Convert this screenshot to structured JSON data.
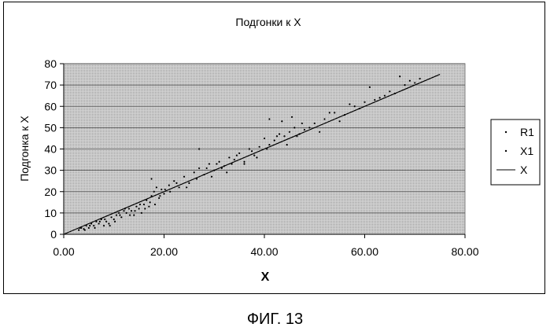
{
  "chart_data": {
    "type": "scatter",
    "title": "Подгонки к X",
    "xlabel": "X",
    "ylabel": "Подгонка к X",
    "xlim": [
      0,
      80
    ],
    "ylim": [
      0,
      80
    ],
    "x_ticks": [
      "0.00",
      "20.00",
      "40.00",
      "60.00",
      "80.00"
    ],
    "y_ticks": [
      "0",
      "10",
      "20",
      "30",
      "40",
      "50",
      "60",
      "70",
      "80"
    ],
    "grid": true,
    "legend_position": "right",
    "legend": [
      "R1",
      "X1",
      "X"
    ],
    "series": [
      {
        "name": "R1",
        "marker": "dot",
        "points": [
          [
            3,
            2
          ],
          [
            3.5,
            3
          ],
          [
            4,
            2.5
          ],
          [
            4.5,
            4
          ],
          [
            5,
            3
          ],
          [
            5.5,
            5
          ],
          [
            6,
            4
          ],
          [
            6.5,
            6
          ],
          [
            7,
            5
          ],
          [
            7.5,
            7
          ],
          [
            8,
            4
          ],
          [
            8.5,
            6
          ],
          [
            9,
            5
          ],
          [
            9.5,
            8
          ],
          [
            10,
            7
          ],
          [
            10.5,
            9
          ],
          [
            11,
            10
          ],
          [
            11.5,
            8
          ],
          [
            12,
            11
          ],
          [
            12.5,
            10
          ],
          [
            13,
            12
          ],
          [
            13.5,
            11
          ],
          [
            14,
            9
          ],
          [
            14.5,
            13
          ],
          [
            15,
            12
          ],
          [
            15.5,
            10
          ],
          [
            16,
            14
          ],
          [
            16.5,
            16
          ],
          [
            17,
            13
          ],
          [
            17.5,
            18
          ],
          [
            18,
            20
          ],
          [
            18.5,
            22
          ],
          [
            19,
            17
          ],
          [
            19.5,
            21
          ],
          [
            20,
            19
          ],
          [
            21,
            23
          ],
          [
            22,
            25
          ],
          [
            23,
            22
          ],
          [
            24,
            27
          ],
          [
            25,
            24
          ],
          [
            26,
            29
          ],
          [
            27,
            31
          ],
          [
            28,
            28
          ],
          [
            29,
            33
          ],
          [
            30,
            30
          ],
          [
            31,
            34
          ],
          [
            32,
            32
          ],
          [
            33,
            36
          ],
          [
            34,
            35
          ],
          [
            35,
            38
          ],
          [
            36,
            34
          ],
          [
            37,
            40
          ],
          [
            38,
            37
          ],
          [
            39,
            41
          ],
          [
            40,
            45
          ],
          [
            41,
            42
          ],
          [
            42,
            44
          ],
          [
            43,
            47
          ],
          [
            44,
            46
          ],
          [
            45,
            48
          ],
          [
            46,
            50
          ],
          [
            47,
            47
          ],
          [
            48,
            49
          ],
          [
            50,
            52
          ],
          [
            52,
            54
          ],
          [
            54,
            57
          ],
          [
            56,
            56
          ],
          [
            58,
            60
          ],
          [
            60,
            62
          ],
          [
            62,
            63
          ],
          [
            64,
            65
          ],
          [
            66,
            66
          ],
          [
            68,
            70
          ],
          [
            70,
            71
          ]
        ]
      },
      {
        "name": "X1",
        "marker": "dot",
        "points": [
          [
            3.2,
            3
          ],
          [
            4.2,
            2
          ],
          [
            5.2,
            4
          ],
          [
            6.2,
            3
          ],
          [
            7.2,
            6
          ],
          [
            8.2,
            7
          ],
          [
            9.2,
            4
          ],
          [
            10.2,
            6
          ],
          [
            11.2,
            9
          ],
          [
            12.2,
            12
          ],
          [
            13.2,
            9
          ],
          [
            14.2,
            11
          ],
          [
            15.2,
            14
          ],
          [
            16.2,
            12
          ],
          [
            17.2,
            15
          ],
          [
            17.5,
            26
          ],
          [
            18.2,
            14
          ],
          [
            19.2,
            18
          ],
          [
            20.2,
            21
          ],
          [
            21.2,
            20
          ],
          [
            22.5,
            24
          ],
          [
            24.5,
            22
          ],
          [
            26.5,
            26
          ],
          [
            27,
            40
          ],
          [
            28.5,
            31
          ],
          [
            29.5,
            27
          ],
          [
            30.5,
            33
          ],
          [
            31.5,
            31
          ],
          [
            32.5,
            29
          ],
          [
            33.5,
            33
          ],
          [
            34.5,
            37
          ],
          [
            36,
            33
          ],
          [
            37.5,
            39
          ],
          [
            38.5,
            36
          ],
          [
            40.5,
            40
          ],
          [
            41,
            54
          ],
          [
            42.5,
            46
          ],
          [
            43.5,
            53
          ],
          [
            44.5,
            42
          ],
          [
            45.5,
            55
          ],
          [
            46.5,
            46
          ],
          [
            47.5,
            52
          ],
          [
            49,
            50
          ],
          [
            51,
            48
          ],
          [
            53,
            57
          ],
          [
            55,
            53
          ],
          [
            57,
            61
          ],
          [
            59,
            59
          ],
          [
            61,
            69
          ],
          [
            63,
            64
          ],
          [
            65,
            67
          ],
          [
            67,
            74
          ],
          [
            69,
            72
          ],
          [
            71,
            73
          ]
        ]
      },
      {
        "name": "X",
        "marker": "line",
        "points": [
          [
            0,
            0
          ],
          [
            75,
            75
          ]
        ]
      }
    ]
  },
  "caption": "ФИГ. 13"
}
